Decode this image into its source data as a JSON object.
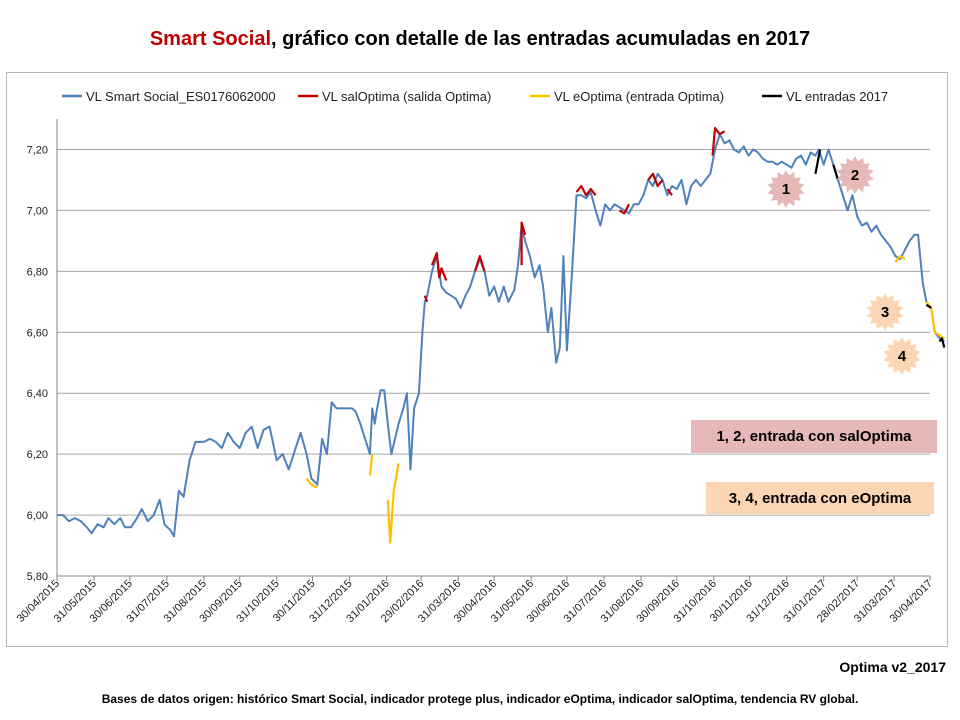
{
  "title": {
    "brand": "Smart Social",
    "rest": ", gráfico con detalle de las entradas acumuladas en 2017"
  },
  "version_label": "Optima v2_2017",
  "sources": "Bases de datos origen: histórico Smart Social, indicador protege plus, indicador eOptima, indicador salOptima, tendencia RV global.",
  "notes": [
    {
      "text": "1, 2,  entrada con salOptima",
      "color": "#e6b8b7"
    },
    {
      "text": "3, 4,  entrada con eOptima",
      "color": "#fcd5b4"
    }
  ],
  "markers": [
    {
      "label": "1",
      "color": "#e6b8b7"
    },
    {
      "label": "2",
      "color": "#e6b8b7"
    },
    {
      "label": "3",
      "color": "#fcd5b4"
    },
    {
      "label": "4",
      "color": "#fcd5b4"
    }
  ],
  "chart_data": {
    "type": "line",
    "title": "Smart Social, gráfico con detalle de las entradas acumuladas en 2017",
    "xlabel": "",
    "ylabel": "",
    "ylim": [
      5.8,
      7.3
    ],
    "yticks": [
      "5,80",
      "6,00",
      "6,20",
      "6,40",
      "6,60",
      "6,80",
      "7,00",
      "7,20"
    ],
    "xticks": [
      "30/04/2015",
      "31/05/2015",
      "30/06/2015",
      "31/07/2015",
      "31/08/2015",
      "30/09/2015",
      "31/10/2015",
      "30/11/2015",
      "31/12/2015",
      "31/01/2016",
      "29/02/2016",
      "31/03/2016",
      "30/04/2016",
      "31/05/2016",
      "30/06/2016",
      "31/07/2016",
      "31/08/2016",
      "30/09/2016",
      "31/10/2016",
      "30/11/2016",
      "31/12/2016",
      "31/01/2017",
      "28/02/2017",
      "31/03/2017",
      "30/04/2017"
    ],
    "grid": "horizontal",
    "legend_position": "top",
    "series": [
      {
        "name": "VL Smart Social_ES0176062000",
        "color": "#4f81bd",
        "points": [
          [
            "2015-04-30",
            6.0
          ],
          [
            "2015-05-05",
            6.0
          ],
          [
            "2015-05-10",
            5.98
          ],
          [
            "2015-05-15",
            5.99
          ],
          [
            "2015-05-20",
            5.98
          ],
          [
            "2015-05-25",
            5.96
          ],
          [
            "2015-05-29",
            5.94
          ],
          [
            "2015-06-03",
            5.97
          ],
          [
            "2015-06-08",
            5.96
          ],
          [
            "2015-06-12",
            5.99
          ],
          [
            "2015-06-17",
            5.97
          ],
          [
            "2015-06-22",
            5.99
          ],
          [
            "2015-06-26",
            5.96
          ],
          [
            "2015-07-01",
            5.96
          ],
          [
            "2015-07-06",
            5.99
          ],
          [
            "2015-07-10",
            6.02
          ],
          [
            "2015-07-15",
            5.98
          ],
          [
            "2015-07-20",
            6.0
          ],
          [
            "2015-07-25",
            6.05
          ],
          [
            "2015-07-29",
            5.97
          ],
          [
            "2015-08-03",
            5.95
          ],
          [
            "2015-08-06",
            5.93
          ],
          [
            "2015-08-10",
            6.08
          ],
          [
            "2015-08-14",
            6.06
          ],
          [
            "2015-08-19",
            6.18
          ],
          [
            "2015-08-24",
            6.24
          ],
          [
            "2015-08-31",
            6.24
          ],
          [
            "2015-09-05",
            6.25
          ],
          [
            "2015-09-10",
            6.24
          ],
          [
            "2015-09-15",
            6.22
          ],
          [
            "2015-09-20",
            6.27
          ],
          [
            "2015-09-25",
            6.24
          ],
          [
            "2015-09-30",
            6.22
          ],
          [
            "2015-10-05",
            6.27
          ],
          [
            "2015-10-10",
            6.29
          ],
          [
            "2015-10-15",
            6.22
          ],
          [
            "2015-10-20",
            6.28
          ],
          [
            "2015-10-25",
            6.29
          ],
          [
            "2015-10-31",
            6.18
          ],
          [
            "2015-11-05",
            6.2
          ],
          [
            "2015-11-10",
            6.15
          ],
          [
            "2015-11-15",
            6.21
          ],
          [
            "2015-11-20",
            6.27
          ],
          [
            "2015-11-25",
            6.2
          ],
          [
            "2015-11-29",
            6.12
          ],
          [
            "2015-12-04",
            6.1
          ],
          [
            "2015-12-08",
            6.25
          ],
          [
            "2015-12-12",
            6.2
          ],
          [
            "2015-12-16",
            6.37
          ],
          [
            "2015-12-20",
            6.35
          ],
          [
            "2015-12-24",
            6.35
          ],
          [
            "2015-12-28",
            6.35
          ],
          [
            "2016-01-02",
            6.35
          ],
          [
            "2016-01-05",
            6.34
          ],
          [
            "2016-01-09",
            6.3
          ],
          [
            "2016-01-13",
            6.25
          ],
          [
            "2016-01-17",
            6.2
          ],
          [
            "2016-01-19",
            6.35
          ],
          [
            "2016-01-21",
            6.3
          ],
          [
            "2016-01-23",
            6.35
          ],
          [
            "2016-01-26",
            6.41
          ],
          [
            "2016-01-29",
            6.41
          ],
          [
            "2016-02-01",
            6.3
          ],
          [
            "2016-02-04",
            6.2
          ],
          [
            "2016-02-10",
            6.3
          ],
          [
            "2016-02-14",
            6.35
          ],
          [
            "2016-02-17",
            6.4
          ],
          [
            "2016-02-20",
            6.15
          ],
          [
            "2016-02-23",
            6.35
          ],
          [
            "2016-02-27",
            6.4
          ],
          [
            "2016-03-01",
            6.6
          ],
          [
            "2016-03-03",
            6.7
          ],
          [
            "2016-03-05",
            6.72
          ],
          [
            "2016-03-09",
            6.8
          ],
          [
            "2016-03-13",
            6.85
          ],
          [
            "2016-03-17",
            6.75
          ],
          [
            "2016-03-21",
            6.73
          ],
          [
            "2016-03-25",
            6.72
          ],
          [
            "2016-03-29",
            6.71
          ],
          [
            "2016-04-02",
            6.68
          ],
          [
            "2016-04-06",
            6.72
          ],
          [
            "2016-04-10",
            6.75
          ],
          [
            "2016-04-14",
            6.8
          ],
          [
            "2016-04-18",
            6.84
          ],
          [
            "2016-04-22",
            6.8
          ],
          [
            "2016-04-26",
            6.72
          ],
          [
            "2016-04-30",
            6.75
          ],
          [
            "2016-05-04",
            6.7
          ],
          [
            "2016-05-08",
            6.75
          ],
          [
            "2016-05-12",
            6.7
          ],
          [
            "2016-05-17",
            6.74
          ],
          [
            "2016-05-20",
            6.82
          ],
          [
            "2016-05-23",
            6.95
          ],
          [
            "2016-05-26",
            6.9
          ],
          [
            "2016-05-30",
            6.85
          ],
          [
            "2016-06-03",
            6.78
          ],
          [
            "2016-06-07",
            6.82
          ],
          [
            "2016-06-10",
            6.75
          ],
          [
            "2016-06-14",
            6.6
          ],
          [
            "2016-06-17",
            6.68
          ],
          [
            "2016-06-21",
            6.5
          ],
          [
            "2016-06-24",
            6.55
          ],
          [
            "2016-06-27",
            6.85
          ],
          [
            "2016-06-30",
            6.54
          ],
          [
            "2016-07-04",
            6.78
          ],
          [
            "2016-07-08",
            7.05
          ],
          [
            "2016-07-12",
            7.05
          ],
          [
            "2016-07-16",
            7.04
          ],
          [
            "2016-07-20",
            7.06
          ],
          [
            "2016-07-24",
            7.0
          ],
          [
            "2016-07-28",
            6.95
          ],
          [
            "2016-08-01",
            7.02
          ],
          [
            "2016-08-05",
            7.0
          ],
          [
            "2016-08-09",
            7.02
          ],
          [
            "2016-08-13",
            7.01
          ],
          [
            "2016-08-17",
            7.0
          ],
          [
            "2016-08-21",
            6.99
          ],
          [
            "2016-08-25",
            7.02
          ],
          [
            "2016-08-29",
            7.02
          ],
          [
            "2016-09-02",
            7.05
          ],
          [
            "2016-09-06",
            7.1
          ],
          [
            "2016-09-10",
            7.08
          ],
          [
            "2016-09-14",
            7.12
          ],
          [
            "2016-09-18",
            7.1
          ],
          [
            "2016-09-22",
            7.05
          ],
          [
            "2016-09-26",
            7.08
          ],
          [
            "2016-09-30",
            7.07
          ],
          [
            "2016-10-04",
            7.1
          ],
          [
            "2016-10-08",
            7.02
          ],
          [
            "2016-10-12",
            7.08
          ],
          [
            "2016-10-16",
            7.1
          ],
          [
            "2016-10-20",
            7.08
          ],
          [
            "2016-10-24",
            7.1
          ],
          [
            "2016-10-28",
            7.12
          ],
          [
            "2016-11-01",
            7.2
          ],
          [
            "2016-11-05",
            7.25
          ],
          [
            "2016-11-09",
            7.22
          ],
          [
            "2016-11-13",
            7.23
          ],
          [
            "2016-11-17",
            7.2
          ],
          [
            "2016-11-21",
            7.19
          ],
          [
            "2016-11-25",
            7.21
          ],
          [
            "2016-11-29",
            7.18
          ],
          [
            "2016-12-03",
            7.2
          ],
          [
            "2016-12-07",
            7.19
          ],
          [
            "2016-12-11",
            7.17
          ],
          [
            "2016-12-15",
            7.16
          ],
          [
            "2016-12-19",
            7.16
          ],
          [
            "2016-12-23",
            7.15
          ],
          [
            "2016-12-27",
            7.16
          ],
          [
            "2016-12-31",
            7.15
          ],
          [
            "2017-01-04",
            7.14
          ],
          [
            "2017-01-08",
            7.17
          ],
          [
            "2017-01-12",
            7.18
          ],
          [
            "2017-01-16",
            7.15
          ],
          [
            "2017-01-20",
            7.19
          ],
          [
            "2017-01-24",
            7.18
          ],
          [
            "2017-01-27",
            7.2
          ],
          [
            "2017-01-31",
            7.15
          ],
          [
            "2017-02-04",
            7.2
          ],
          [
            "2017-02-08",
            7.15
          ],
          [
            "2017-02-12",
            7.1
          ],
          [
            "2017-02-16",
            7.05
          ],
          [
            "2017-02-20",
            7.0
          ],
          [
            "2017-02-24",
            7.05
          ],
          [
            "2017-02-28",
            6.98
          ],
          [
            "2017-03-04",
            6.95
          ],
          [
            "2017-03-08",
            6.96
          ],
          [
            "2017-03-12",
            6.93
          ],
          [
            "2017-03-16",
            6.95
          ],
          [
            "2017-03-20",
            6.92
          ],
          [
            "2017-03-24",
            6.9
          ],
          [
            "2017-03-28",
            6.88
          ],
          [
            "2017-04-01",
            6.85
          ],
          [
            "2017-04-05",
            6.84
          ],
          [
            "2017-04-09",
            6.87
          ],
          [
            "2017-04-13",
            6.9
          ],
          [
            "2017-04-17",
            6.92
          ],
          [
            "2017-04-20",
            6.92
          ],
          [
            "2017-04-24",
            6.76
          ],
          [
            "2017-04-27",
            6.7
          ],
          [
            "2017-05-01",
            6.68
          ],
          [
            "2017-05-04",
            6.6
          ],
          [
            "2017-05-08",
            6.58
          ],
          [
            "2017-05-12",
            6.57
          ]
        ]
      },
      {
        "name": "VL salOptima (salida Optima)",
        "color": "#c00000",
        "segments": [
          [
            [
              "2016-03-03",
              6.72
            ],
            [
              "2016-03-05",
              6.7
            ]
          ],
          [
            [
              "2016-03-09",
              6.82
            ],
            [
              "2016-03-13",
              6.86
            ],
            [
              "2016-03-15",
              6.78
            ],
            [
              "2016-03-17",
              6.81
            ],
            [
              "2016-03-21",
              6.77
            ]
          ],
          [
            [
              "2016-04-14",
              6.8
            ],
            [
              "2016-04-18",
              6.85
            ],
            [
              "2016-04-22",
              6.8
            ]
          ],
          [
            [
              "2016-05-23",
              6.82
            ],
            [
              "2016-05-23",
              6.96
            ],
            [
              "2016-05-26",
              6.92
            ]
          ],
          [
            [
              "2016-07-08",
              7.06
            ],
            [
              "2016-07-12",
              7.08
            ],
            [
              "2016-07-16",
              7.05
            ],
            [
              "2016-07-20",
              7.07
            ],
            [
              "2016-07-24",
              7.05
            ]
          ],
          [
            [
              "2016-08-13",
              7.0
            ],
            [
              "2016-08-17",
              6.99
            ],
            [
              "2016-08-21",
              7.02
            ]
          ],
          [
            [
              "2016-09-06",
              7.1
            ],
            [
              "2016-09-10",
              7.12
            ],
            [
              "2016-09-14",
              7.08
            ],
            [
              "2016-09-18",
              7.1
            ]
          ],
          [
            [
              "2016-09-22",
              7.07
            ],
            [
              "2016-09-26",
              7.05
            ]
          ],
          [
            [
              "2016-10-30",
              7.18
            ],
            [
              "2016-11-01",
              7.27
            ],
            [
              "2016-11-05",
              7.25
            ],
            [
              "2016-11-09",
              7.26
            ]
          ]
        ]
      },
      {
        "name": "VL eOptima (entrada Optima)",
        "color": "#ffc000",
        "segments": [
          [
            [
              "2015-11-25",
              6.12
            ],
            [
              "2015-11-29",
              6.1
            ],
            [
              "2015-12-04",
              6.09
            ]
          ],
          [
            [
              "2016-01-17",
              6.13
            ],
            [
              "2016-01-19",
              6.2
            ]
          ],
          [
            [
              "2016-02-01",
              6.05
            ],
            [
              "2016-02-03",
              5.91
            ],
            [
              "2016-02-06",
              6.08
            ],
            [
              "2016-02-10",
              6.17
            ]
          ],
          [
            [
              "2017-04-01",
              6.83
            ],
            [
              "2017-04-05",
              6.85
            ],
            [
              "2017-04-09",
              6.84
            ]
          ],
          [
            [
              "2017-04-27",
              6.7
            ],
            [
              "2017-05-01",
              6.68
            ],
            [
              "2017-05-04",
              6.6
            ],
            [
              "2017-05-08",
              6.59
            ],
            [
              "2017-05-12",
              6.58
            ]
          ]
        ]
      },
      {
        "name": "VL entradas 2017",
        "color": "#000000",
        "segments": [
          [
            [
              "2017-01-24",
              7.12
            ],
            [
              "2017-01-28",
              7.2
            ]
          ],
          [
            [
              "2017-02-08",
              7.15
            ],
            [
              "2017-02-12",
              7.1
            ]
          ],
          [
            [
              "2017-04-27",
              6.69
            ],
            [
              "2017-05-01",
              6.68
            ]
          ],
          [
            [
              "2017-05-08",
              6.57
            ],
            [
              "2017-05-10",
              6.58
            ],
            [
              "2017-05-12",
              6.55
            ]
          ]
        ]
      }
    ]
  }
}
